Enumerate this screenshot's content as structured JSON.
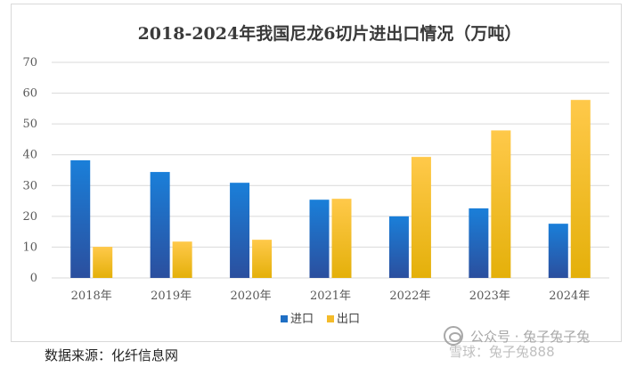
{
  "chart_data": {
    "type": "bar",
    "title": "2018-2024年我国尼龙6切片进出口情况（万吨）",
    "categories": [
      "2018年",
      "2019年",
      "2020年",
      "2021年",
      "2022年",
      "2023年",
      "2024年"
    ],
    "series": [
      {
        "name": "进口",
        "values": [
          38.2,
          34.4,
          30.9,
          25.4,
          20.0,
          22.6,
          17.6
        ],
        "color": "#1f6fc4"
      },
      {
        "name": "出口",
        "values": [
          10.1,
          11.8,
          12.4,
          25.7,
          39.3,
          47.9,
          57.8
        ],
        "color": "#f4bb2a"
      }
    ],
    "ylim": [
      0,
      70
    ],
    "yticks": [
      0,
      10,
      20,
      30,
      40,
      50,
      60,
      70
    ],
    "grid": true,
    "legend": "bottom-center"
  },
  "source": "数据来源：化纤信息网",
  "watermark": {
    "line1": "公众号 · 兔子兔子兔",
    "line2": "雪球：兔子兔888"
  }
}
